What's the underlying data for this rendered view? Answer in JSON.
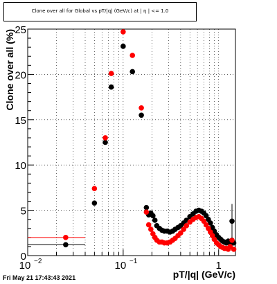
{
  "title": "Clone  over all for Global vs pT/|q| (GeV/c) at | η | <= 1.0",
  "footer": "Fri May 21 17:43:43 2021",
  "chart_data": {
    "type": "scatter",
    "title": "Clone  over all for Global vs pT/|q| (GeV/c) at | η | <= 1.0",
    "xlabel": "pT/|q| (GeV/c)",
    "ylabel": "Clone  over all (%)",
    "xscale": "log",
    "xlim": [
      0.01,
      1.5
    ],
    "ylim": [
      0,
      25
    ],
    "xticks": [
      0.01,
      0.1,
      1
    ],
    "xtick_labels": [
      {
        "base": "10",
        "exp": "−2",
        "value": 0.01
      },
      {
        "base": "10",
        "exp": "−1",
        "value": 0.1
      },
      {
        "base": "1",
        "exp": "",
        "value": 1
      }
    ],
    "yticks": [
      0,
      5,
      10,
      15,
      20,
      25
    ],
    "grid": true,
    "colors": {
      "series1": "#000000",
      "series2": "#ff0000"
    },
    "series": [
      {
        "color": "#000000",
        "points": [
          [
            0.025,
            1.2
          ],
          [
            0.05,
            5.8
          ],
          [
            0.065,
            12.5
          ],
          [
            0.075,
            18.6
          ],
          [
            0.1,
            23.1
          ],
          [
            0.125,
            20.3
          ],
          [
            0.155,
            15.5
          ],
          [
            0.175,
            5.3
          ],
          [
            0.185,
            4.5
          ],
          [
            0.195,
            4.7
          ],
          [
            0.205,
            4.4
          ],
          [
            0.215,
            3.9
          ],
          [
            0.225,
            3.3
          ],
          [
            0.24,
            3.0
          ],
          [
            0.255,
            2.8
          ],
          [
            0.27,
            2.7
          ],
          [
            0.29,
            2.7
          ],
          [
            0.31,
            2.6
          ],
          [
            0.33,
            2.7
          ],
          [
            0.35,
            2.9
          ],
          [
            0.375,
            3.1
          ],
          [
            0.4,
            3.3
          ],
          [
            0.43,
            3.6
          ],
          [
            0.46,
            3.9
          ],
          [
            0.5,
            4.3
          ],
          [
            0.54,
            4.6
          ],
          [
            0.58,
            4.9
          ],
          [
            0.62,
            5.0
          ],
          [
            0.66,
            4.9
          ],
          [
            0.7,
            4.7
          ],
          [
            0.74,
            4.4
          ],
          [
            0.78,
            4.0
          ],
          [
            0.82,
            3.6
          ],
          [
            0.86,
            3.1
          ],
          [
            0.9,
            2.7
          ],
          [
            0.95,
            2.3
          ],
          [
            1.0,
            2.0
          ],
          [
            1.05,
            1.8
          ],
          [
            1.1,
            1.6
          ],
          [
            1.15,
            1.5
          ],
          [
            1.2,
            1.4
          ],
          [
            1.26,
            1.6
          ],
          [
            1.32,
            1.2
          ],
          [
            1.38,
            3.8
          ],
          [
            1.44,
            1.4
          ]
        ]
      },
      {
        "color": "#ff0000",
        "points": [
          [
            0.025,
            2.0
          ],
          [
            0.05,
            7.4
          ],
          [
            0.065,
            13.0
          ],
          [
            0.075,
            20.1
          ],
          [
            0.1,
            24.7
          ],
          [
            0.125,
            22.1
          ],
          [
            0.155,
            16.3
          ],
          [
            0.175,
            4.8
          ],
          [
            0.185,
            3.4
          ],
          [
            0.195,
            2.9
          ],
          [
            0.205,
            2.4
          ],
          [
            0.215,
            2.0
          ],
          [
            0.225,
            1.7
          ],
          [
            0.24,
            1.5
          ],
          [
            0.255,
            1.5
          ],
          [
            0.27,
            1.4
          ],
          [
            0.29,
            1.4
          ],
          [
            0.31,
            1.5
          ],
          [
            0.33,
            1.7
          ],
          [
            0.35,
            1.9
          ],
          [
            0.375,
            2.2
          ],
          [
            0.4,
            2.5
          ],
          [
            0.43,
            2.9
          ],
          [
            0.46,
            3.3
          ],
          [
            0.5,
            3.7
          ],
          [
            0.54,
            4.0
          ],
          [
            0.58,
            4.2
          ],
          [
            0.62,
            4.3
          ],
          [
            0.66,
            4.1
          ],
          [
            0.7,
            3.8
          ],
          [
            0.74,
            3.4
          ],
          [
            0.78,
            3.0
          ],
          [
            0.82,
            2.6
          ],
          [
            0.86,
            2.2
          ],
          [
            0.9,
            1.8
          ],
          [
            0.95,
            1.4
          ],
          [
            1.0,
            1.2
          ],
          [
            1.05,
            1.0
          ],
          [
            1.1,
            0.9
          ],
          [
            1.15,
            0.8
          ],
          [
            1.2,
            0.8
          ],
          [
            1.26,
            0.7
          ],
          [
            1.32,
            1.0
          ],
          [
            1.38,
            1.7
          ],
          [
            1.44,
            0.7
          ]
        ]
      }
    ],
    "first_bin_xerr": [
      0.01,
      0.04
    ]
  }
}
